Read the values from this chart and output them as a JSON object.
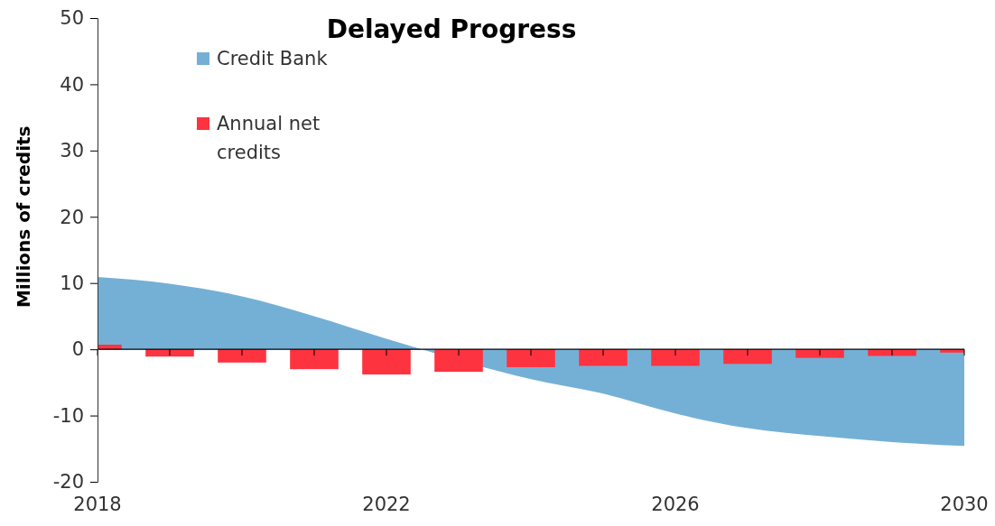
{
  "chart_data": {
    "type": "bar",
    "title": "Delayed Progress",
    "ylabel": "Millions of credits",
    "x": [
      2018,
      2019,
      2020,
      2021,
      2022,
      2023,
      2024,
      2025,
      2026,
      2027,
      2028,
      2029,
      2030
    ],
    "series": [
      {
        "name": "Credit Bank",
        "type": "area",
        "color": "#74b0d6",
        "values": [
          10.9,
          9.9,
          8.0,
          5.0,
          1.6,
          null,
          -4.5,
          -6.7,
          -9.7,
          -11.9,
          -13.1,
          -14.0,
          -14.6
        ]
      },
      {
        "name": "Annual net credits",
        "color": "#fe3340",
        "values": [
          0.7,
          -1.1,
          -2.0,
          -3.0,
          -3.8,
          -3.4,
          -2.7,
          -2.5,
          -2.5,
          -2.2,
          -1.3,
          -1.0,
          -0.5
        ]
      }
    ],
    "xlim": [
      2018,
      2030
    ],
    "xticks": [
      2018,
      {
        "value": 2019,
        "label": null
      },
      {
        "value": 2020,
        "label": null
      },
      {
        "value": 2021,
        "label": null
      },
      2022,
      {
        "value": 2023,
        "label": null
      },
      {
        "value": 2024,
        "label": null
      },
      {
        "value": 2025,
        "label": null
      },
      2026,
      {
        "value": 2027,
        "label": null
      },
      {
        "value": 2028,
        "label": null
      },
      {
        "value": 2029,
        "label": null
      },
      2030
    ],
    "ylim": [
      -20,
      50
    ],
    "yticks": [
      -20,
      -10,
      0,
      10,
      20,
      30,
      40,
      50
    ],
    "legend": "top left"
  }
}
